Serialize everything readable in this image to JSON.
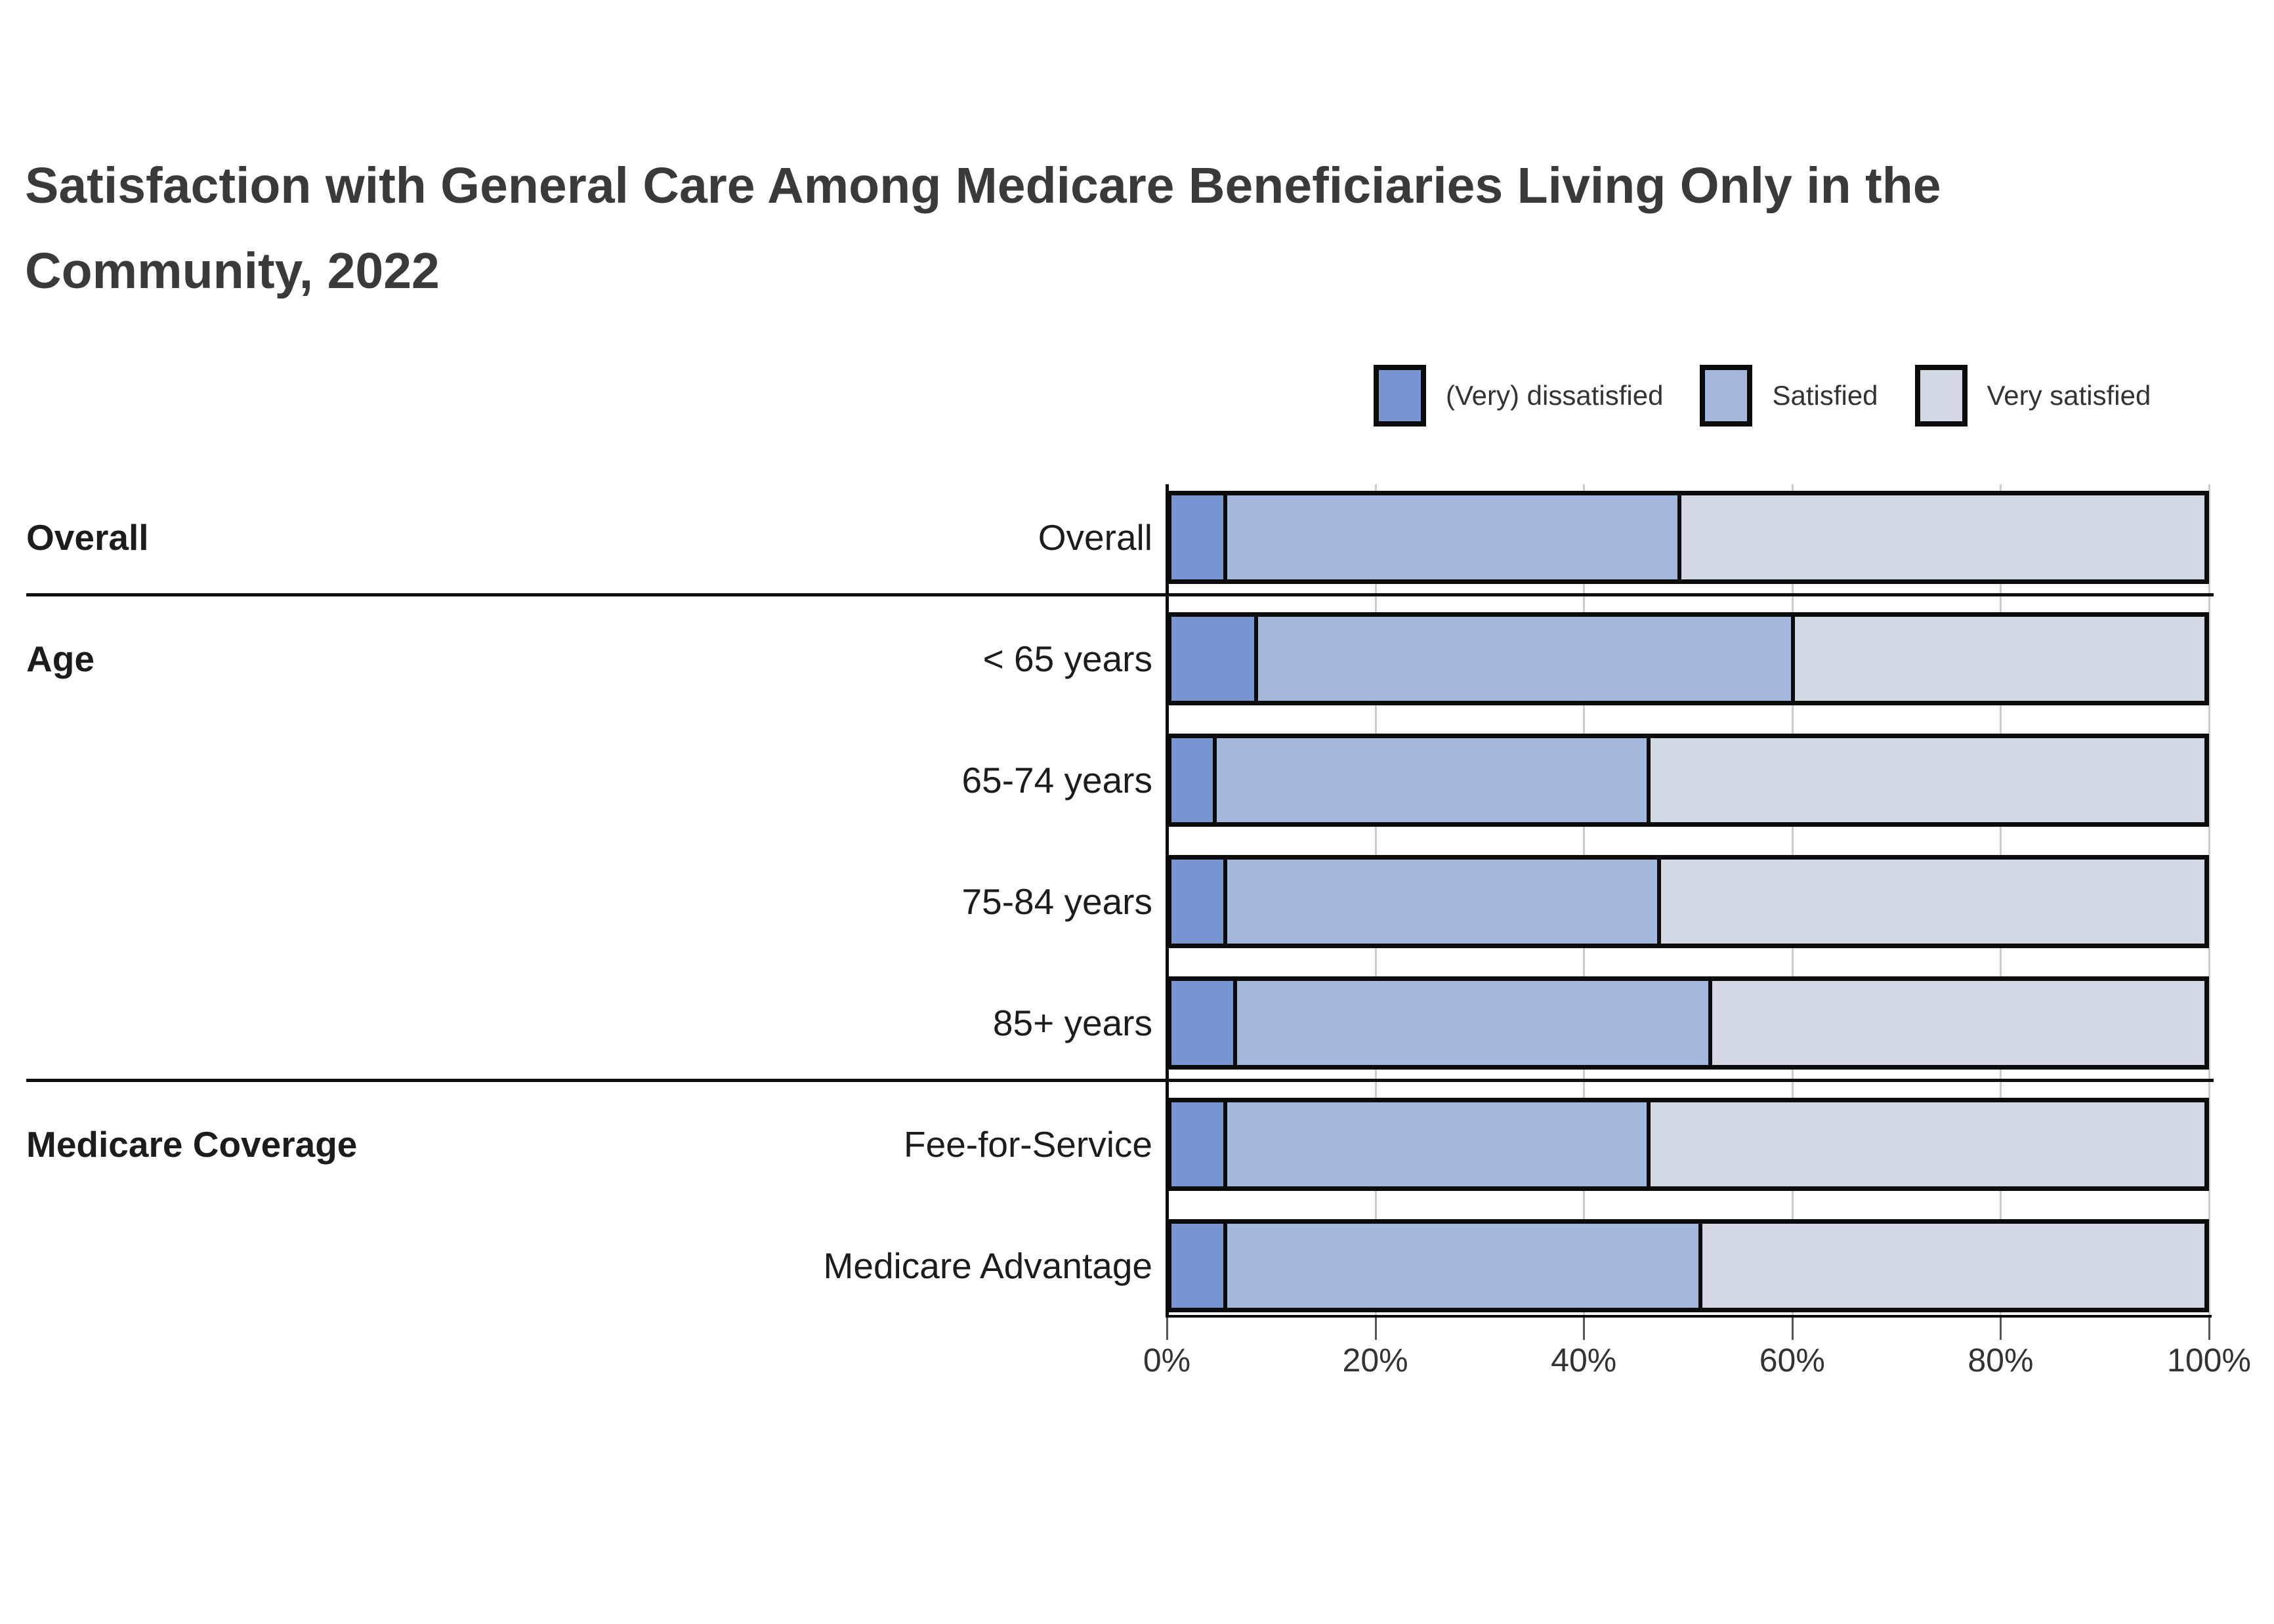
{
  "title": {
    "line1": "Satisfaction with General Care Among Medicare Beneficiaries Living Only in the",
    "line2": "Community, 2022"
  },
  "legend": [
    {
      "label": "(Very) dissatisfied",
      "color": "#7894d1"
    },
    {
      "label": "Satisfied",
      "color": "#a4b8dc"
    },
    {
      "label": "Very satisfied",
      "color": "#d3d9e4"
    }
  ],
  "chart_data": {
    "type": "bar",
    "orientation": "horizontal",
    "stacked": true,
    "unit": "percent",
    "xlim": [
      0,
      100
    ],
    "x_tick_values": [
      0,
      20,
      40,
      60,
      80,
      100
    ],
    "x_tick_labels": [
      "0%",
      "20%",
      "40%",
      "60%",
      "80%",
      "100%"
    ],
    "grid": true,
    "legend_position": "top-right",
    "series_names": [
      "(Very) dissatisfied",
      "Satisfied",
      "Very satisfied"
    ],
    "series_colors": [
      "#7894d1",
      "#a4b8dc",
      "#d3d9e4"
    ],
    "groups": [
      {
        "group": "Overall",
        "rows": [
          {
            "label": "Overall",
            "values": [
              5,
              44,
              51
            ]
          }
        ]
      },
      {
        "group": "Age",
        "rows": [
          {
            "label": "< 65 years",
            "values": [
              8,
              52,
              40
            ]
          },
          {
            "label": "65-74 years",
            "values": [
              4,
              42,
              54
            ]
          },
          {
            "label": "75-84 years",
            "values": [
              5,
              42,
              53
            ]
          },
          {
            "label": "85+ years",
            "values": [
              6,
              46,
              48
            ]
          }
        ]
      },
      {
        "group": "Medicare Coverage",
        "rows": [
          {
            "label": "Fee-for-Service",
            "values": [
              5,
              41,
              54
            ]
          },
          {
            "label": "Medicare Advantage",
            "values": [
              5,
              46,
              49
            ]
          }
        ]
      }
    ]
  }
}
